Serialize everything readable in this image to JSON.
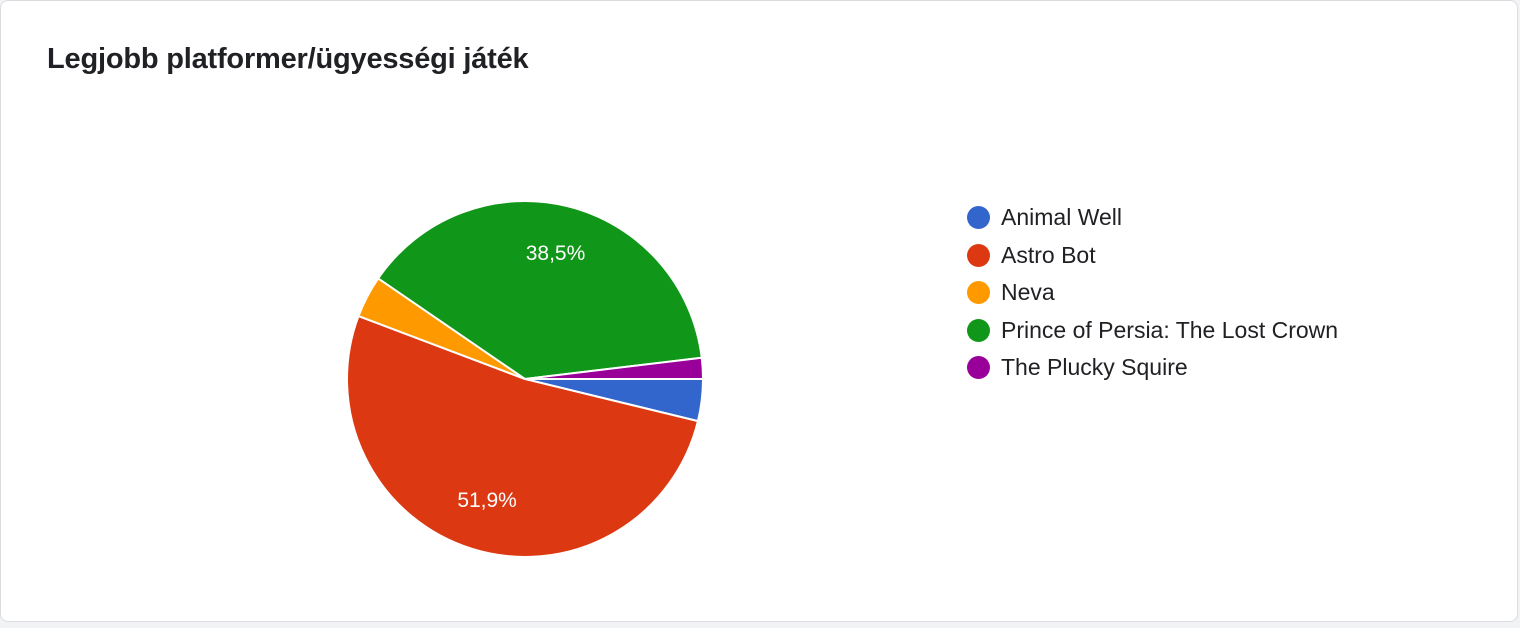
{
  "card": {
    "title": "Legjobb platformer/ügyességi játék"
  },
  "chart_data": {
    "type": "pie",
    "title": "Legjobb platformer/ügyességi játék",
    "legend_position": "right",
    "slices": [
      {
        "label": "Animal Well",
        "value": 3.8,
        "color": "#3366cc",
        "display": ""
      },
      {
        "label": "Astro Bot",
        "value": 51.9,
        "color": "#dc3912",
        "display": "51,9%"
      },
      {
        "label": "Neva",
        "value": 3.8,
        "color": "#ff9900",
        "display": ""
      },
      {
        "label": "Prince of Persia: The Lost Crown",
        "value": 38.5,
        "color": "#109618",
        "display": "38,5%"
      },
      {
        "label": "The Plucky Squire",
        "value": 1.9,
        "color": "#990099",
        "display": ""
      }
    ]
  }
}
